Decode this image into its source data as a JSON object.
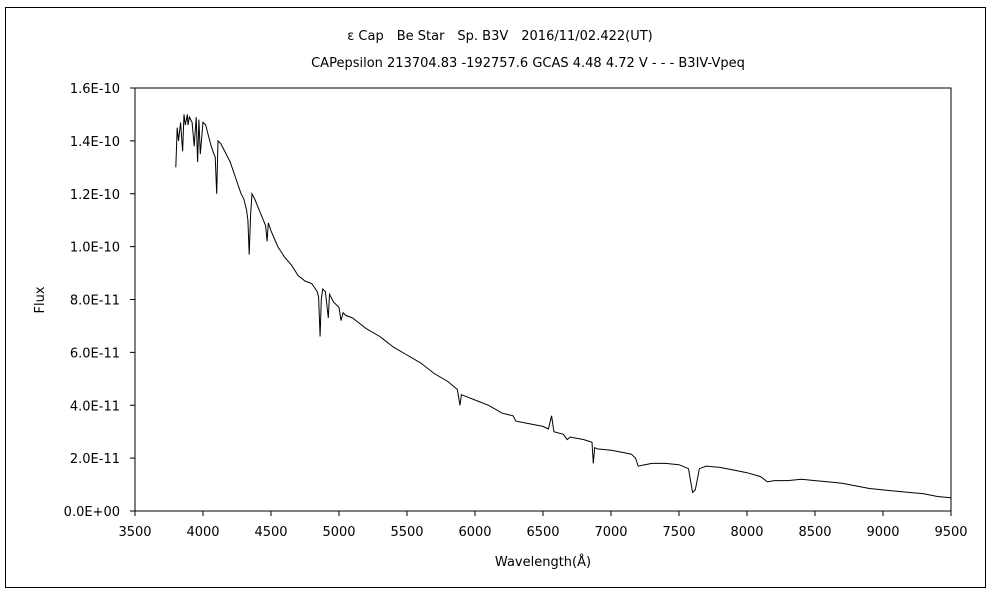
{
  "chart_data": {
    "type": "line",
    "title": "ε Cap　Be Star　Sp. B3V　2016/11/02.422(UT)",
    "subtitle": "CAPepsilon 213704.83 -192757.6 GCAS 4.48 4.72 V - - - B3IV-Vpeq",
    "xlabel": "Wavelength(Å)",
    "ylabel": "Flux",
    "xlim": [
      3500,
      9500
    ],
    "ylim": [
      0,
      1.6e-10
    ],
    "x_ticks": [
      3500,
      4000,
      4500,
      5000,
      5500,
      6000,
      6500,
      7000,
      7500,
      8000,
      8500,
      9000,
      9500
    ],
    "x_tick_labels": [
      "3500",
      "4000",
      "4500",
      "5000",
      "5500",
      "6000",
      "6500",
      "7000",
      "7500",
      "8000",
      "8500",
      "9000",
      "9500"
    ],
    "y_ticks": [
      0,
      2e-11,
      4e-11,
      6e-11,
      8e-11,
      1e-10,
      1.2e-10,
      1.4e-10,
      1.6e-10
    ],
    "y_tick_labels": [
      "0.0E+00",
      "2.0E-11",
      "4.0E-11",
      "6.0E-11",
      "8.0E-11",
      "1.0E-10",
      "1.2E-10",
      "1.4E-10",
      "1.6E-10"
    ],
    "grid": false,
    "legend": "none",
    "line_color": "#000000",
    "series": [
      {
        "x": [
          3800,
          3810,
          3820,
          3835,
          3850,
          3860,
          3870,
          3885,
          3890,
          3900,
          3920,
          3935,
          3950,
          3960,
          3970,
          3980,
          4000,
          4020,
          4040,
          4060,
          4080,
          4090,
          4101,
          4110,
          4130,
          4160,
          4200,
          4240,
          4280,
          4300,
          4320,
          4330,
          4340,
          4350,
          4360,
          4380,
          4420,
          4460,
          4471,
          4480,
          4500,
          4550,
          4600,
          4650,
          4700,
          4750,
          4800,
          4840,
          4850,
          4861,
          4870,
          4880,
          4900,
          4921,
          4930,
          4960,
          5000,
          5015,
          5030,
          5050,
          5100,
          5200,
          5300,
          5400,
          5500,
          5600,
          5700,
          5800,
          5870,
          5890,
          5900,
          5950,
          6000,
          6100,
          6200,
          6280,
          6300,
          6400,
          6500,
          6540,
          6563,
          6580,
          6650,
          6678,
          6700,
          6800,
          6860,
          6870,
          6880,
          6900,
          7000,
          7100,
          7150,
          7180,
          7200,
          7250,
          7300,
          7400,
          7500,
          7570,
          7600,
          7620,
          7650,
          7700,
          7800,
          7900,
          8000,
          8100,
          8150,
          8200,
          8300,
          8400,
          8500,
          8600,
          8700,
          8800,
          8900,
          9000,
          9100,
          9200,
          9300,
          9400,
          9500
        ],
        "y": [
          1.3e-10,
          1.45e-10,
          1.4e-10,
          1.47e-10,
          1.36e-10,
          1.5e-10,
          1.46e-10,
          1.5e-10,
          1.46e-10,
          1.49e-10,
          1.47e-10,
          1.38e-10,
          1.49e-10,
          1.32e-10,
          1.48e-10,
          1.35e-10,
          1.47e-10,
          1.46e-10,
          1.42e-10,
          1.38e-10,
          1.35e-10,
          1.34e-10,
          1.2e-10,
          1.4e-10,
          1.39e-10,
          1.36e-10,
          1.32e-10,
          1.26e-10,
          1.2e-10,
          1.18e-10,
          1.14e-10,
          1.1e-10,
          9.7e-11,
          1.12e-10,
          1.2e-10,
          1.18e-10,
          1.13e-10,
          1.08e-10,
          1.02e-10,
          1.09e-10,
          1.06e-10,
          1e-10,
          9.6e-11,
          9.3e-11,
          8.9e-11,
          8.7e-11,
          8.6e-11,
          8.3e-11,
          8.1e-11,
          6.6e-11,
          8e-11,
          8.4e-11,
          8.3e-11,
          7.3e-11,
          8.2e-11,
          7.9e-11,
          7.7e-11,
          7.2e-11,
          7.5e-11,
          7.4e-11,
          7.3e-11,
          6.9e-11,
          6.6e-11,
          6.2e-11,
          5.9e-11,
          5.6e-11,
          5.2e-11,
          4.9e-11,
          4.6e-11,
          4e-11,
          4.4e-11,
          4.3e-11,
          4.2e-11,
          4e-11,
          3.7e-11,
          3.6e-11,
          3.4e-11,
          3.3e-11,
          3.2e-11,
          3.1e-11,
          3.6e-11,
          3e-11,
          2.9e-11,
          2.7e-11,
          2.8e-11,
          2.7e-11,
          2.6e-11,
          1.8e-11,
          2.4e-11,
          2.35e-11,
          2.3e-11,
          2.2e-11,
          2.15e-11,
          2e-11,
          1.7e-11,
          1.75e-11,
          1.8e-11,
          1.8e-11,
          1.75e-11,
          1.6e-11,
          7e-12,
          8e-12,
          1.6e-11,
          1.7e-11,
          1.65e-11,
          1.55e-11,
          1.45e-11,
          1.3e-11,
          1.1e-11,
          1.15e-11,
          1.15e-11,
          1.2e-11,
          1.15e-11,
          1.1e-11,
          1.05e-11,
          9.5e-12,
          8.5e-12,
          8e-12,
          7.5e-12,
          7e-12,
          6.5e-12,
          5.5e-12,
          5e-12
        ]
      }
    ]
  }
}
